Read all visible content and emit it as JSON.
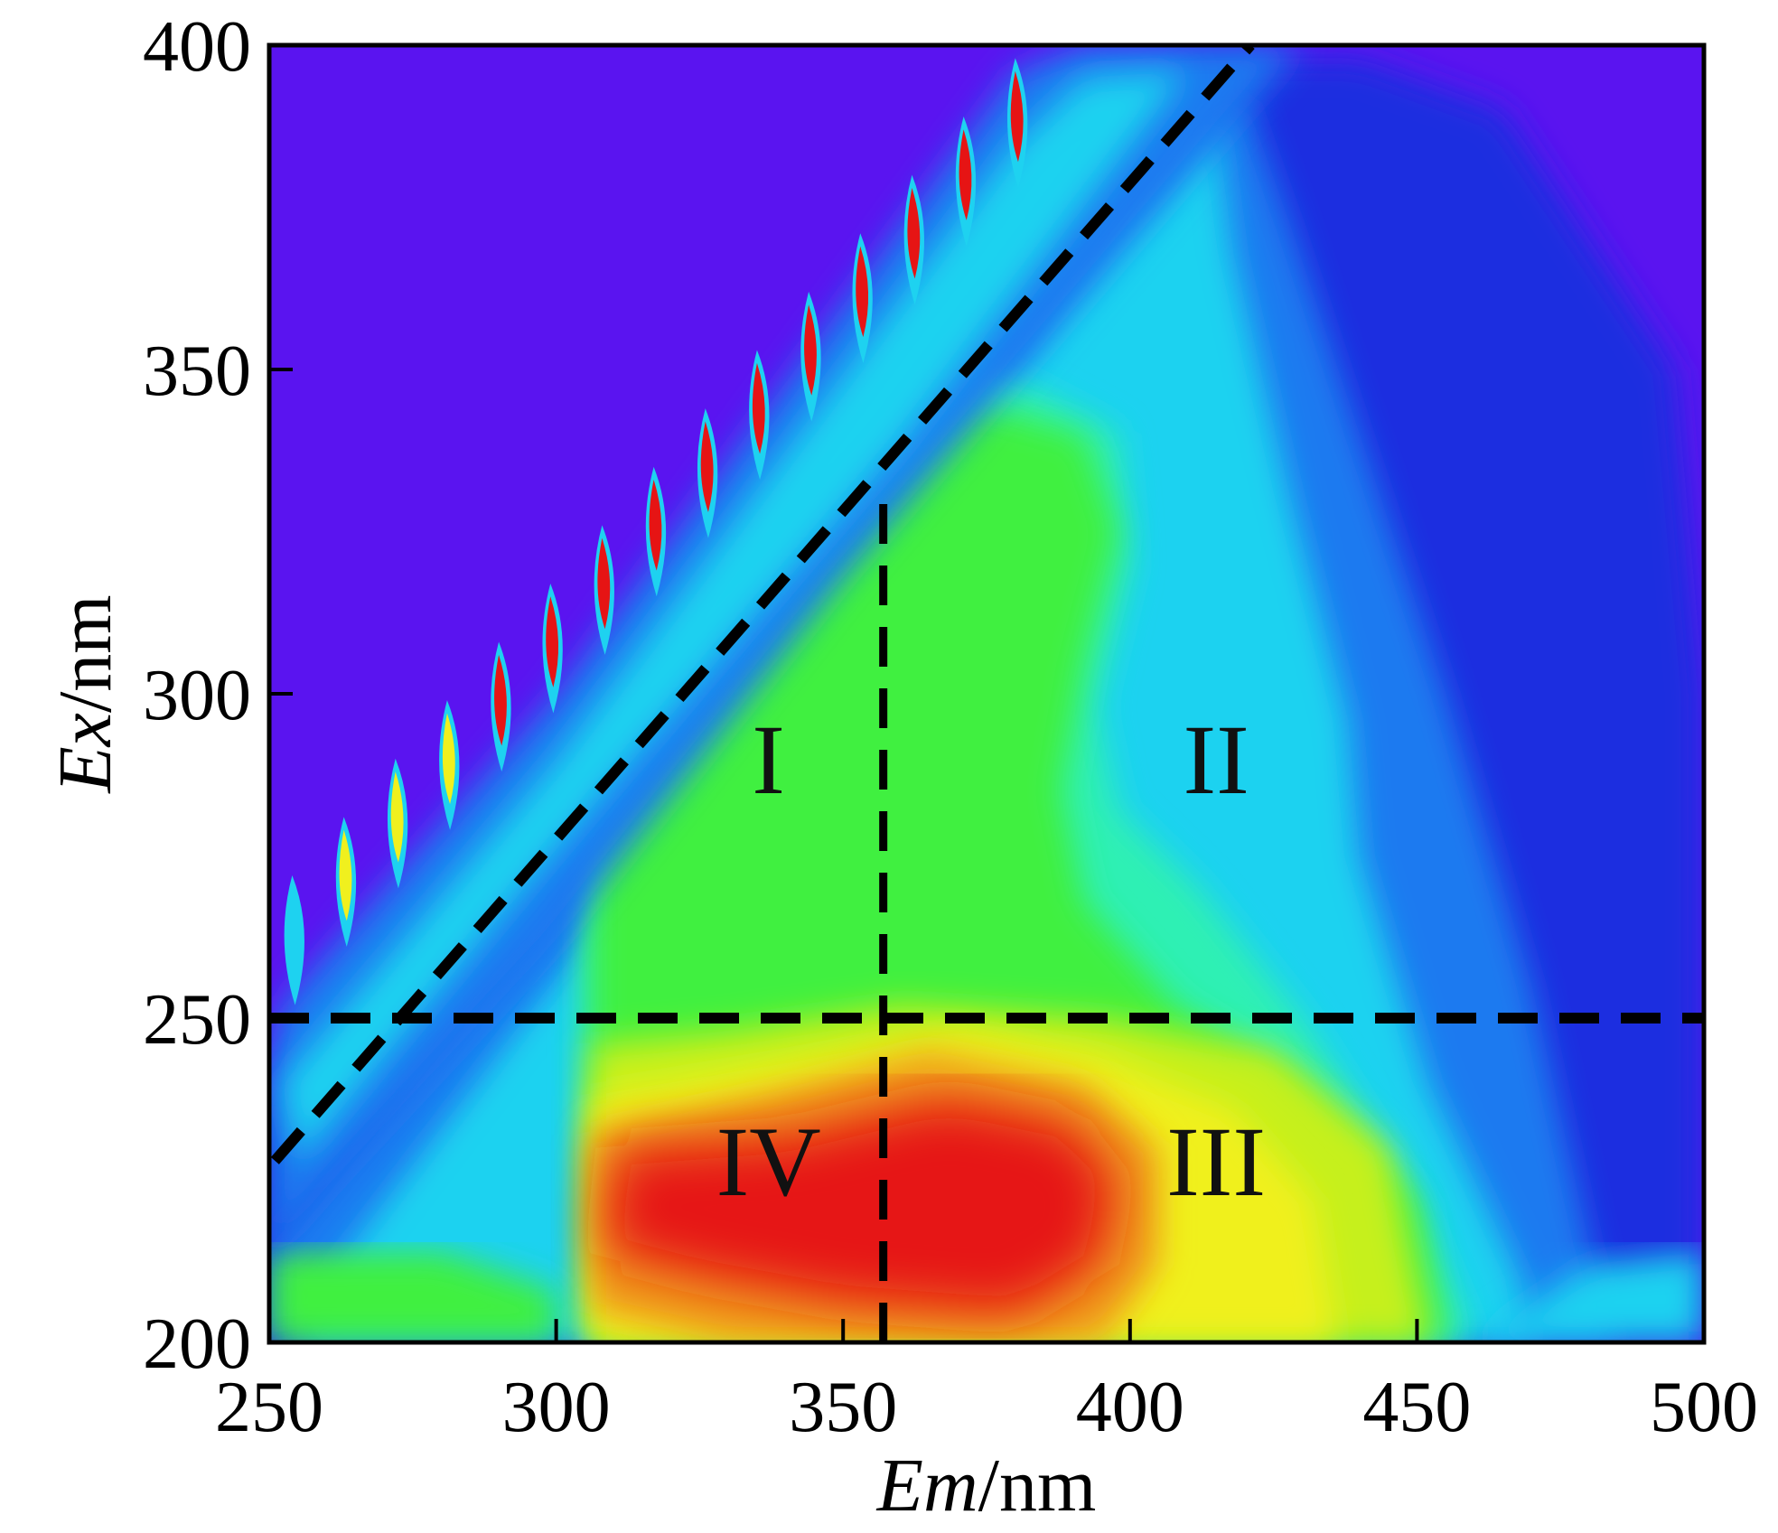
{
  "chart_data": {
    "type": "heatmap",
    "title": "",
    "xlabel": {
      "italic": "Em",
      "unit": "/nm"
    },
    "ylabel": {
      "italic": "Ex",
      "unit": "/nm"
    },
    "xlim": [
      250,
      500
    ],
    "ylim": [
      200,
      400
    ],
    "x_ticks": [
      250,
      300,
      350,
      400,
      450,
      500
    ],
    "y_ticks": [
      200,
      250,
      300,
      350,
      400
    ],
    "grid": false,
    "colormap": [
      "#5a14f0",
      "#1a2ee0",
      "#1c7af0",
      "#1ed2f0",
      "#2ef0b4",
      "#40f040",
      "#c6f01e",
      "#f0f01e",
      "#f0a01e",
      "#e61414"
    ],
    "regions": [
      {
        "label": "I",
        "x": 337,
        "y": 290
      },
      {
        "label": "II",
        "x": 415,
        "y": 290
      },
      {
        "label": "III",
        "x": 415,
        "y": 228
      },
      {
        "label": "IV",
        "x": 337,
        "y": 228
      }
    ],
    "boundary_lines": [
      {
        "kind": "horizontal",
        "value": 250
      },
      {
        "kind": "vertical",
        "value": 357,
        "from": 200,
        "to": 330
      },
      {
        "kind": "diagonal",
        "points": [
          [
            251,
            228
          ],
          [
            421,
            400
          ]
        ]
      }
    ]
  }
}
